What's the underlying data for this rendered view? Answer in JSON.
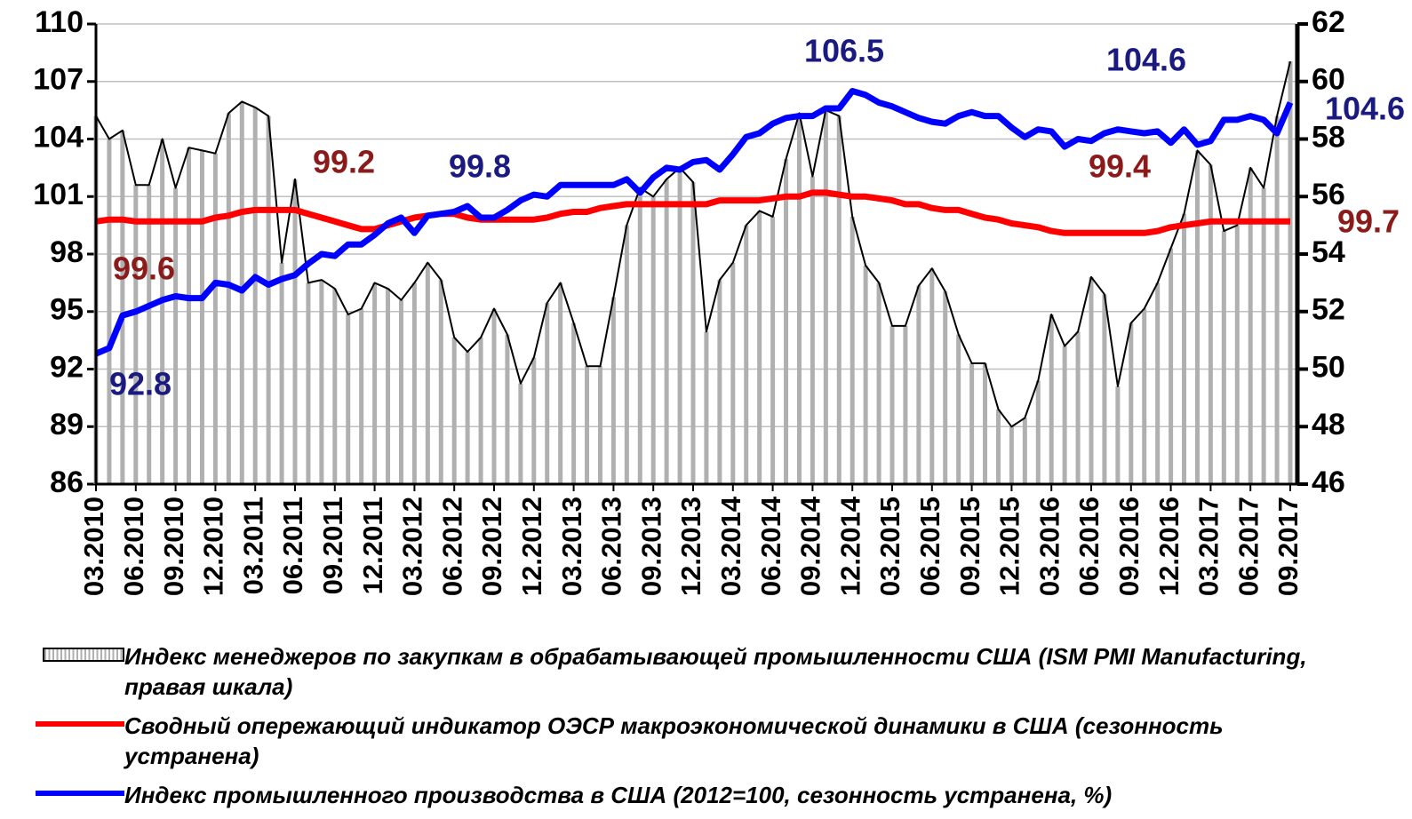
{
  "chart_data": {
    "type": "line",
    "categories": [
      "03.2010",
      null,
      null,
      "06.2010",
      null,
      null,
      "09.2010",
      null,
      null,
      "12.2010",
      null,
      null,
      "03.2011",
      null,
      null,
      "06.2011",
      null,
      null,
      "09.2011",
      null,
      null,
      "12.2011",
      null,
      null,
      "03.2012",
      null,
      null,
      "06.2012",
      null,
      null,
      "09.2012",
      null,
      null,
      "12.2012",
      null,
      null,
      "03.2013",
      null,
      null,
      "06.2013",
      null,
      null,
      "09.2013",
      null,
      null,
      "12.2013",
      null,
      null,
      "03.2014",
      null,
      null,
      "06.2014",
      null,
      null,
      "09.2014",
      null,
      null,
      "12.2014",
      null,
      null,
      "03.2015",
      null,
      null,
      "06.2015",
      null,
      null,
      "09.2015",
      null,
      null,
      "12.2015",
      null,
      null,
      "03.2016",
      null,
      null,
      "06.2016",
      null,
      null,
      "09.2016",
      null,
      null,
      "12.2016",
      null,
      null,
      "03.2017",
      null,
      null,
      "06.2017",
      null,
      null,
      "09.2017"
    ],
    "series": [
      {
        "name": "Индекс менеджеров по закупкам в обрабатывающей промышленности США (ISM PMI Manufacturing, правая шкала)",
        "color": "#b0b0b0",
        "axis": "y2",
        "style": "bars",
        "values": [
          58.8,
          58.0,
          58.3,
          56.4,
          56.4,
          58.0,
          56.3,
          57.7,
          57.6,
          57.5,
          58.9,
          59.3,
          59.1,
          58.8,
          53.7,
          56.6,
          53.0,
          53.1,
          52.8,
          51.9,
          52.1,
          53.0,
          52.8,
          52.4,
          53.0,
          53.7,
          53.1,
          51.1,
          50.6,
          51.1,
          52.1,
          51.2,
          49.5,
          50.4,
          52.3,
          53.0,
          51.6,
          50.1,
          50.1,
          52.5,
          55.0,
          56.3,
          56.0,
          56.6,
          57.0,
          56.5,
          51.3,
          53.1,
          53.7,
          55.0,
          55.5,
          55.3,
          57.3,
          58.9,
          56.7,
          59.0,
          58.8,
          55.3,
          53.6,
          53.0,
          51.5,
          51.5,
          52.9,
          53.5,
          52.7,
          51.2,
          50.2,
          50.2,
          48.6,
          48.0,
          48.3,
          49.6,
          51.9,
          50.8,
          51.3,
          53.2,
          52.6,
          49.4,
          51.6,
          52.1,
          53.0,
          54.2,
          55.4,
          57.6,
          57.1,
          54.8,
          55.0,
          57.0,
          56.3,
          58.8,
          60.7
        ]
      },
      {
        "name": "Сводный опережающий индикатор ОЭСР макроэкономической динамики в США (сезонность устранена)",
        "color": "#ff0000",
        "style": "line",
        "values": [
          99.7,
          99.8,
          99.8,
          99.7,
          99.7,
          99.7,
          99.7,
          99.7,
          99.7,
          99.9,
          100.0,
          100.2,
          100.3,
          100.3,
          100.3,
          100.3,
          100.1,
          99.9,
          99.7,
          99.5,
          99.3,
          99.3,
          99.5,
          99.7,
          99.9,
          100.0,
          100.1,
          100.1,
          99.9,
          99.8,
          99.8,
          99.8,
          99.8,
          99.8,
          99.9,
          100.1,
          100.2,
          100.2,
          100.4,
          100.5,
          100.6,
          100.6,
          100.6,
          100.6,
          100.6,
          100.6,
          100.6,
          100.8,
          100.8,
          100.8,
          100.8,
          100.9,
          101.0,
          101.0,
          101.2,
          101.2,
          101.1,
          101.0,
          101.0,
          100.9,
          100.8,
          100.6,
          100.6,
          100.4,
          100.3,
          100.3,
          100.1,
          99.9,
          99.8,
          99.6,
          99.5,
          99.4,
          99.2,
          99.1,
          99.1,
          99.1,
          99.1,
          99.1,
          99.1,
          99.1,
          99.2,
          99.4,
          99.5,
          99.6,
          99.7,
          99.7,
          99.7,
          99.7,
          99.7,
          99.7,
          99.7
        ]
      },
      {
        "name": "Индекс промышленного производства в США (2012=100, сезонность устранена, %)",
        "color": "#0000ff",
        "style": "line",
        "values": [
          92.8,
          93.1,
          94.8,
          95.0,
          95.3,
          95.6,
          95.8,
          95.7,
          95.7,
          96.5,
          96.4,
          96.1,
          96.8,
          96.4,
          96.7,
          96.9,
          97.5,
          98.0,
          97.9,
          98.5,
          98.5,
          99.0,
          99.6,
          99.9,
          99.1,
          100.0,
          100.1,
          100.2,
          100.5,
          99.9,
          99.9,
          100.3,
          100.8,
          101.1,
          101.0,
          101.6,
          101.6,
          101.6,
          101.6,
          101.6,
          101.9,
          101.2,
          102.0,
          102.5,
          102.4,
          102.8,
          102.9,
          102.4,
          103.2,
          104.1,
          104.3,
          104.8,
          105.1,
          105.2,
          105.2,
          105.6,
          105.6,
          106.5,
          106.3,
          105.9,
          105.7,
          105.4,
          105.1,
          104.9,
          104.8,
          105.2,
          105.4,
          105.2,
          105.2,
          104.6,
          104.1,
          104.5,
          104.4,
          103.6,
          104.0,
          103.9,
          104.3,
          104.5,
          104.4,
          104.3,
          104.4,
          103.8,
          104.5,
          103.7,
          103.9,
          105.0,
          105.0,
          105.2,
          105.0,
          104.3,
          105.9
        ]
      }
    ],
    "ylim": [
      86,
      110
    ],
    "yticks": [
      86,
      89,
      92,
      95,
      98,
      101,
      104,
      107,
      110
    ],
    "y2lim": [
      46,
      62
    ],
    "y2ticks": [
      46,
      48,
      50,
      52,
      54,
      56,
      58,
      60,
      62
    ],
    "grid": true,
    "annotations": [
      {
        "text": "99.6",
        "color": "#8b1a1a"
      },
      {
        "text": "99.2",
        "color": "#8b1a1a"
      },
      {
        "text": "99.8",
        "color": "#1a1a80"
      },
      {
        "text": "106.5",
        "color": "#1a1a80"
      },
      {
        "text": "104.6",
        "color": "#1a1a80"
      },
      {
        "text": "99.4",
        "color": "#8b1a1a"
      },
      {
        "text": "92.8",
        "color": "#1a1a80"
      },
      {
        "text": "104.6",
        "color": "#1a1a80"
      },
      {
        "text": "99.7",
        "color": "#8b1a1a"
      }
    ]
  }
}
